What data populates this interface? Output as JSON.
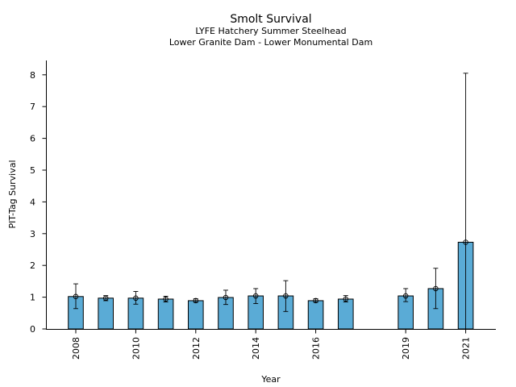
{
  "chart_data": {
    "type": "bar",
    "title": "Smolt Survival",
    "subtitle_lines": [
      "LYFE Hatchery Summer Steelhead",
      "Lower Granite Dam - Lower Monumental Dam"
    ],
    "xlabel": "Year",
    "ylabel": "PIT-Tag Survival",
    "ylim": [
      0,
      8.5
    ],
    "y_ticks": [
      0,
      1,
      2,
      3,
      4,
      5,
      6,
      7,
      8
    ],
    "x_tick_labels": [
      "2008",
      "2010",
      "2012",
      "2014",
      "2016",
      "2019",
      "2021"
    ],
    "grid": false,
    "bar_color": "#5aabd6",
    "edge_color": "#000000",
    "points": [
      {
        "year": 2008,
        "value": 1.02,
        "lower": 0.64,
        "upper": 1.42
      },
      {
        "year": 2009,
        "value": 0.97,
        "lower": 0.89,
        "upper": 1.05
      },
      {
        "year": 2010,
        "value": 0.97,
        "lower": 0.78,
        "upper": 1.18
      },
      {
        "year": 2011,
        "value": 0.94,
        "lower": 0.85,
        "upper": 1.03
      },
      {
        "year": 2012,
        "value": 0.89,
        "lower": 0.84,
        "upper": 0.95
      },
      {
        "year": 2013,
        "value": 0.99,
        "lower": 0.77,
        "upper": 1.22
      },
      {
        "year": 2014,
        "value": 1.04,
        "lower": 0.8,
        "upper": 1.27
      },
      {
        "year": 2015,
        "value": 1.04,
        "lower": 0.55,
        "upper": 1.52
      },
      {
        "year": 2016,
        "value": 0.89,
        "lower": 0.84,
        "upper": 0.95
      },
      {
        "year": 2017,
        "value": 0.94,
        "lower": 0.85,
        "upper": 1.05
      },
      {
        "year": 2019,
        "value": 1.04,
        "lower": 0.86,
        "upper": 1.27
      },
      {
        "year": 2020,
        "value": 1.27,
        "lower": 0.64,
        "upper": 1.91
      },
      {
        "year": 2021,
        "value": 2.73,
        "lower": 0.0,
        "upper": 8.05
      }
    ]
  }
}
